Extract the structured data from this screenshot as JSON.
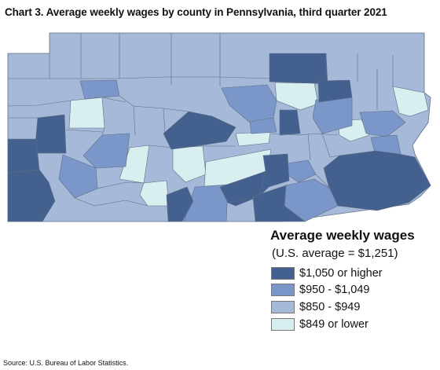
{
  "title": "Chart 3. Average weekly wages by county in Pennsylvania, third quarter 2021",
  "legend": {
    "title": "Average weekly wages",
    "subtitle": "(U.S. average = $1,251)",
    "items": [
      {
        "label": "$1,050 or higher",
        "color": "#44608f"
      },
      {
        "label": "$950 - $1,049",
        "color": "#7b96c8"
      },
      {
        "label": "$850 - $949",
        "color": "#a6b9d8"
      },
      {
        "label": "$849 or lower",
        "color": "#d9efef"
      }
    ]
  },
  "source": "Source: U.S. Bureau of Labor Statistics.",
  "colors": {
    "border": "#5f6f86",
    "background": "#ffffff"
  }
}
